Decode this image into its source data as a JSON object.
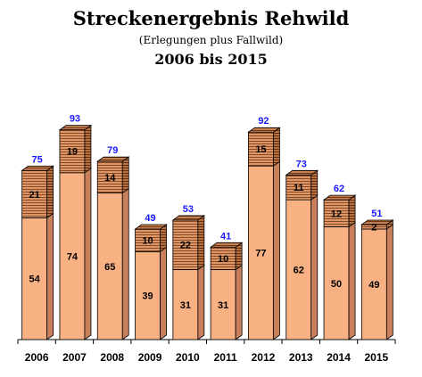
{
  "chart_data": {
    "type": "bar",
    "stacked": true,
    "title": "Streckenergebnis Rehwild",
    "subtitle": "(Erlegungen plus Fallwild)",
    "period": "2006 bis 2015",
    "categories": [
      "2006",
      "2007",
      "2008",
      "2009",
      "2010",
      "2011",
      "2012",
      "2013",
      "2014",
      "2015"
    ],
    "series": [
      {
        "values": [
          54,
          74,
          65,
          39,
          31,
          31,
          77,
          62,
          50,
          49
        ],
        "color": "#f7b183"
      },
      {
        "values": [
          21,
          19,
          14,
          10,
          22,
          10,
          15,
          11,
          12,
          2
        ],
        "color": "#d9895a"
      }
    ],
    "totals": [
      75,
      93,
      79,
      49,
      53,
      41,
      92,
      73,
      62,
      51
    ],
    "ylim": [
      0,
      100
    ],
    "grid": false,
    "legend": "none"
  }
}
